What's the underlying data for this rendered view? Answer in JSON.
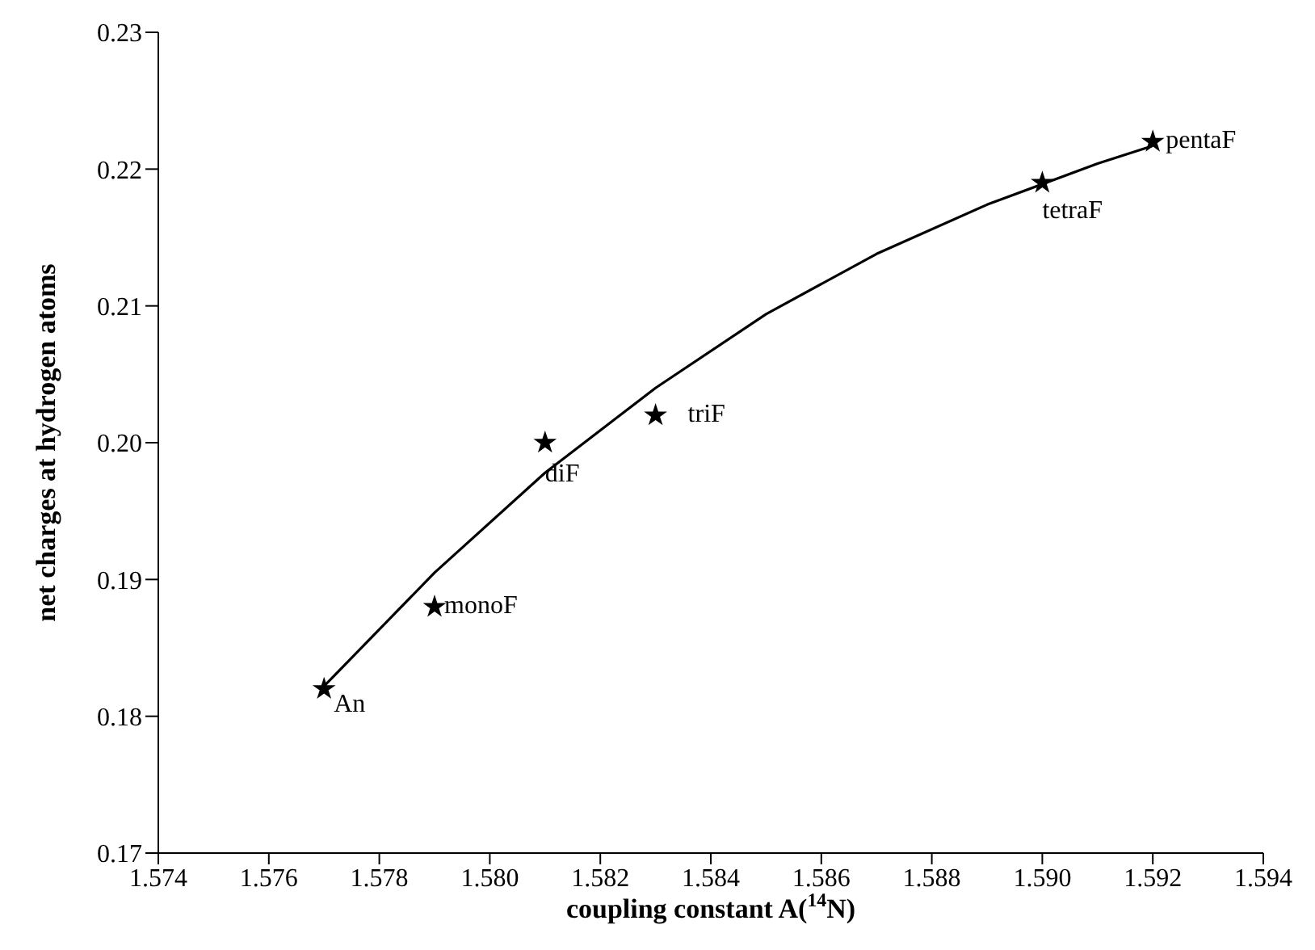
{
  "chart_data": {
    "type": "scatter",
    "xlabel": "coupling constant A($^{14}$N)",
    "ylabel": "net charges at hydrogen atoms",
    "series": [
      {
        "color": "#000000",
        "marker": "star",
        "x": [
          1.577,
          1.579,
          1.581,
          1.583,
          1.59,
          1.592
        ],
        "values": [
          0.182,
          0.188,
          0.2,
          0.202,
          0.219,
          0.222
        ]
      },
      {
        "type": "line",
        "color": "#000000",
        "marker": "none",
        "line_style": "solid",
        "x": [
          1.577,
          1.579,
          1.581,
          1.583,
          1.585,
          1.587,
          1.589,
          1.591,
          1.592
        ],
        "values": [
          0.1822,
          0.1905,
          0.1978,
          0.204,
          0.2094,
          0.2138,
          0.2174,
          0.2204,
          0.2217
        ]
      }
    ],
    "annotations": [
      {
        "text": "An",
        "x": 1.577,
        "y": 0.182
      },
      {
        "text": "monoF",
        "x": 1.579,
        "y": 0.188
      },
      {
        "text": "diF",
        "x": 1.581,
        "y": 0.2
      },
      {
        "text": "triF",
        "x": 1.583,
        "y": 0.202
      },
      {
        "text": "tetraF",
        "x": 1.59,
        "y": 0.219
      },
      {
        "text": "pentaF",
        "x": 1.592,
        "y": 0.222
      }
    ],
    "xlim": [
      1.574,
      1.594
    ],
    "xticks": [
      {
        "value": 1.574,
        "label": "1.574"
      },
      {
        "value": 1.576,
        "label": "1.576"
      },
      {
        "value": 1.578,
        "label": "1.578"
      },
      {
        "value": 1.58,
        "label": "1.580"
      },
      {
        "value": 1.582,
        "label": "1.582"
      },
      {
        "value": 1.584,
        "label": "1.584"
      },
      {
        "value": 1.586,
        "label": "1.586"
      },
      {
        "value": 1.588,
        "label": "1.588"
      },
      {
        "value": 1.59,
        "label": "1.590"
      },
      {
        "value": 1.592,
        "label": "1.592"
      },
      {
        "value": 1.594,
        "label": "1.594"
      }
    ],
    "ylim": [
      0.17,
      0.23
    ],
    "yticks": [
      {
        "value": 0.17,
        "label": "0.17"
      },
      {
        "value": 0.18,
        "label": "0.18"
      },
      {
        "value": 0.19,
        "label": "0.19"
      },
      {
        "value": 0.2,
        "label": "0.20"
      },
      {
        "value": 0.21,
        "label": "0.21"
      },
      {
        "value": 0.22,
        "label": "0.22"
      },
      {
        "value": 0.23,
        "label": "0.23"
      }
    ]
  }
}
